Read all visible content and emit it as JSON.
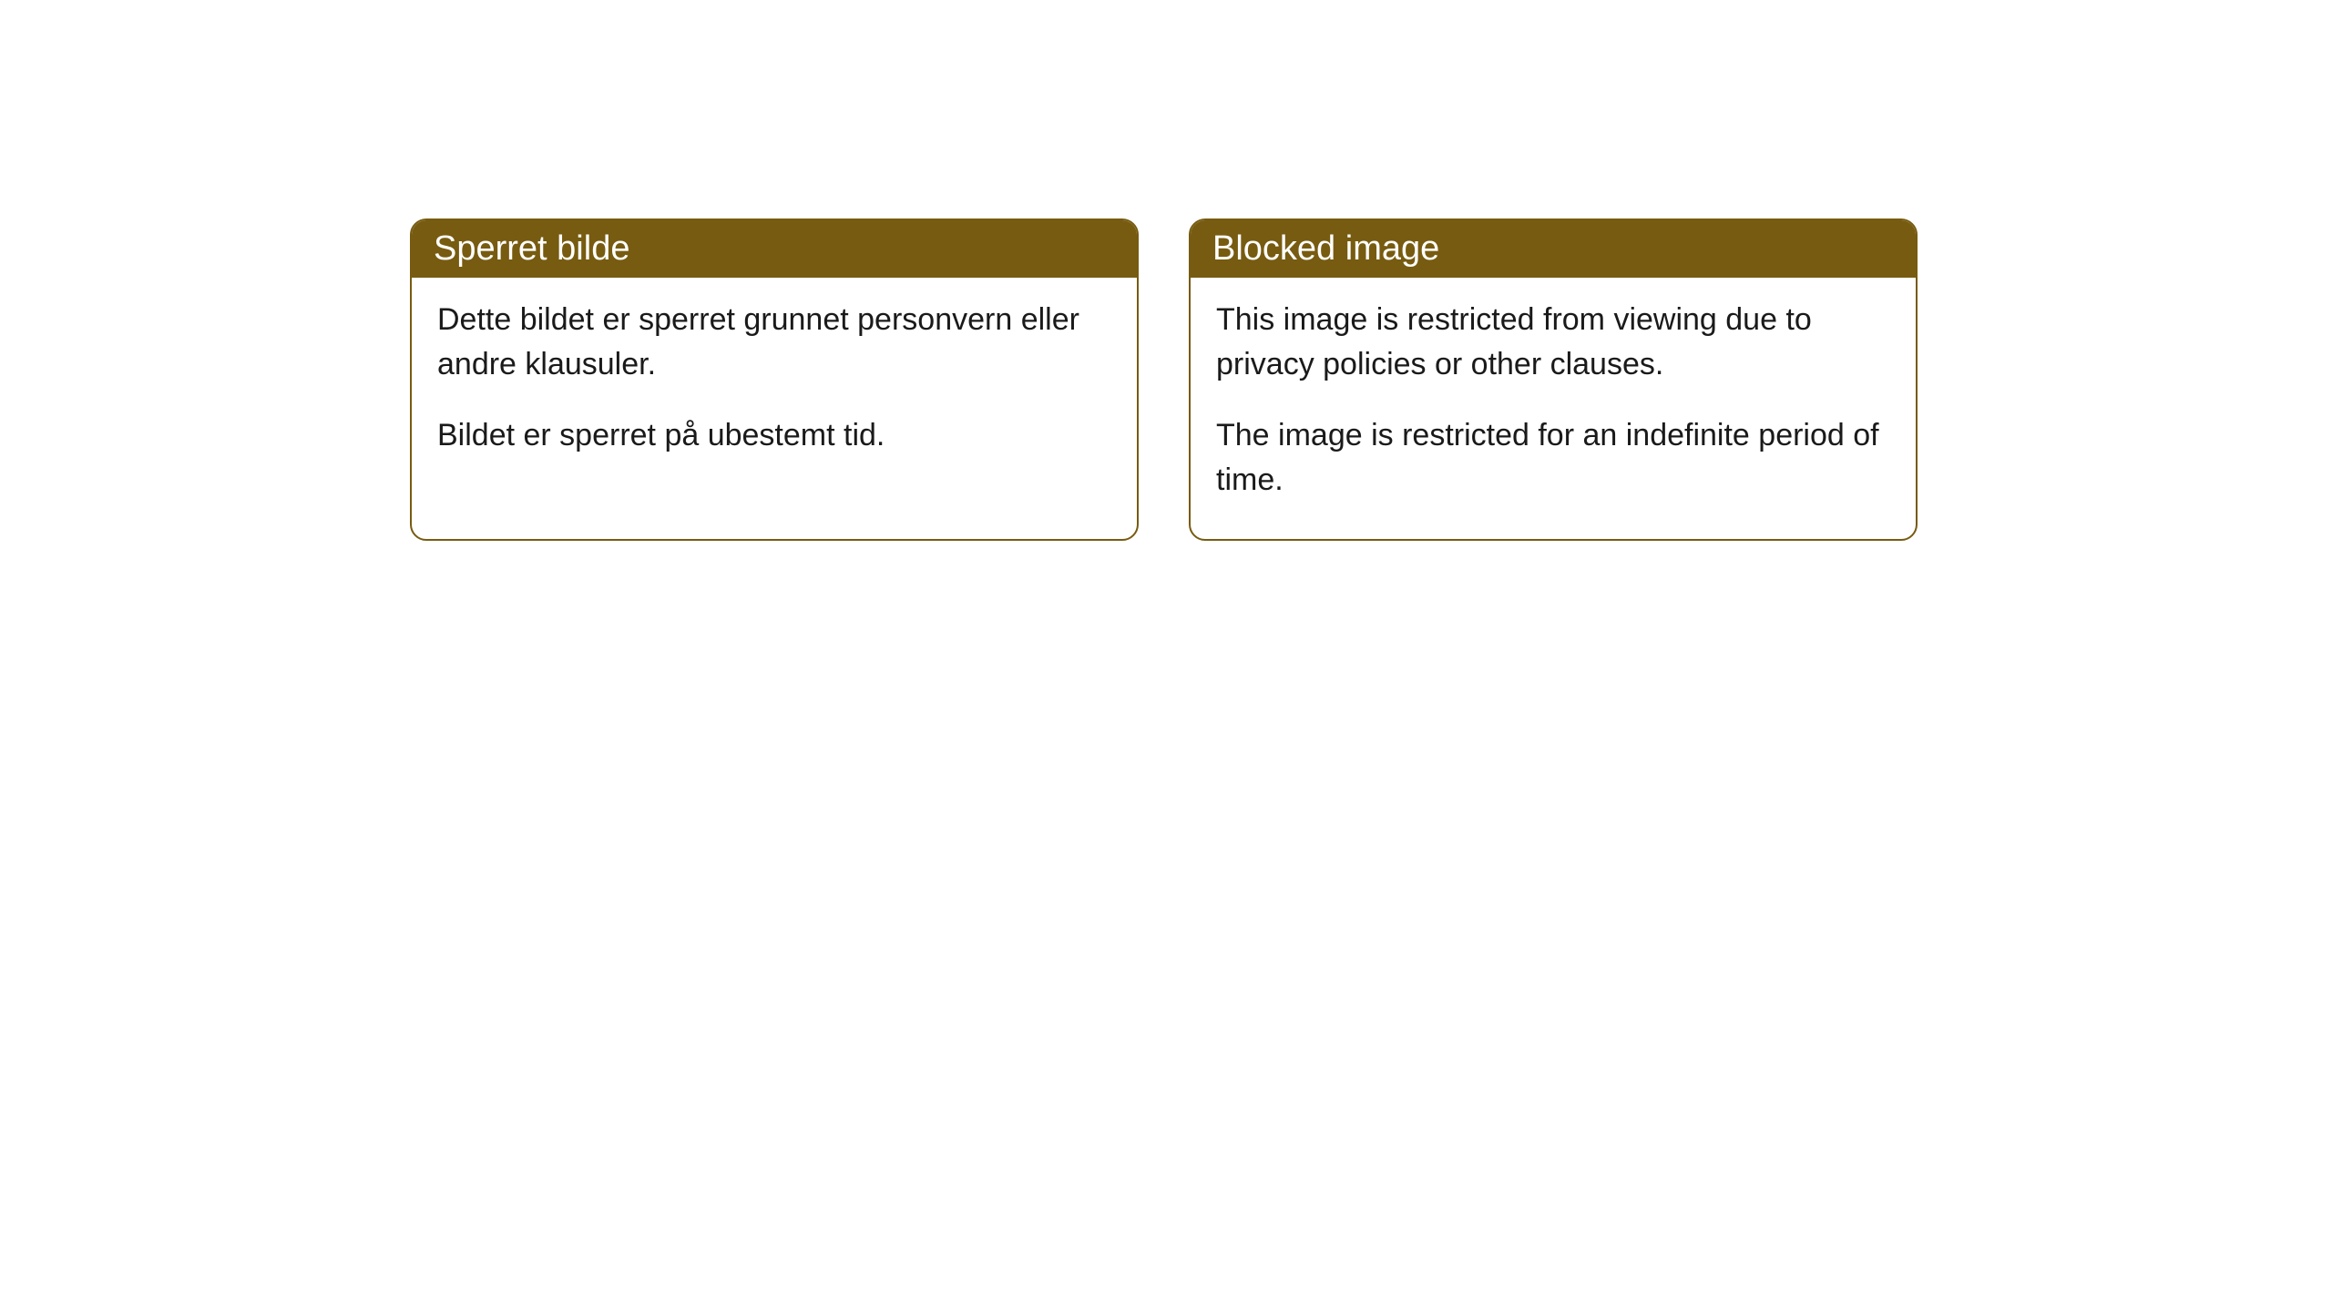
{
  "cards": [
    {
      "title": "Sperret bilde",
      "paragraph1": "Dette bildet er sperret grunnet personvern eller andre klausuler.",
      "paragraph2": "Bildet er sperret på ubestemt tid."
    },
    {
      "title": "Blocked image",
      "paragraph1": "This image is restricted from viewing due to privacy policies or other clauses.",
      "paragraph2": "The image is restricted for an indefinite period of time."
    }
  ],
  "style": {
    "header_background": "#775b10",
    "header_text_color": "#ffffff",
    "border_color": "#775b10",
    "body_background": "#ffffff",
    "body_text_color": "#1a1a1a",
    "border_radius": 18,
    "header_fontsize": 38,
    "body_fontsize": 34
  }
}
